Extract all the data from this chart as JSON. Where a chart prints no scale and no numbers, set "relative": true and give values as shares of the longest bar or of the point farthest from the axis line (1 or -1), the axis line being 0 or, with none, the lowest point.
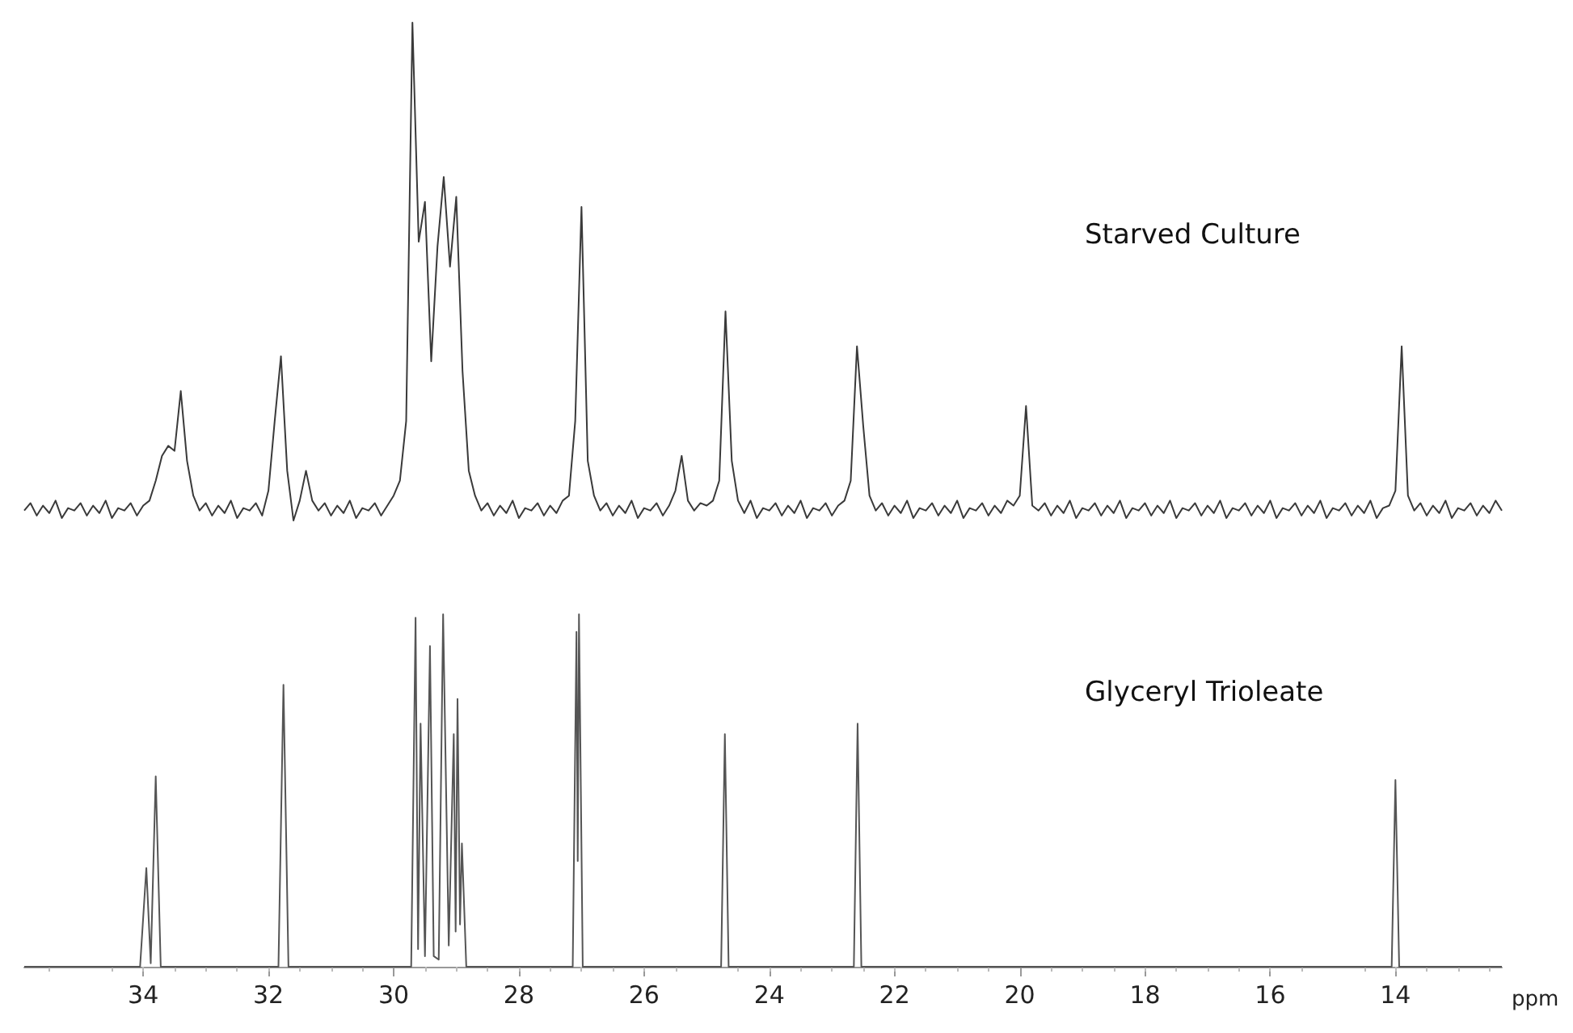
{
  "chart_data": [
    {
      "type": "line",
      "relative": true,
      "tick_labels": false,
      "categories": [
        null,
        null,
        null,
        null,
        null,
        null,
        null,
        null,
        null,
        null,
        null,
        null,
        null,
        null,
        null,
        null,
        null,
        null,
        null,
        null,
        null,
        null,
        null,
        null,
        null,
        null,
        null,
        null,
        null,
        null,
        null,
        null,
        null,
        null,
        null,
        null,
        null,
        null,
        null,
        null,
        null,
        null,
        null,
        null,
        null,
        null,
        null,
        null,
        null,
        null,
        null,
        null,
        null,
        null,
        null,
        null,
        null,
        null,
        null,
        null,
        null,
        null,
        null,
        null,
        null,
        null,
        null,
        null,
        null,
        null,
        null,
        null,
        null,
        null,
        null,
        null,
        null,
        null,
        null,
        null,
        null,
        null,
        null,
        null,
        null,
        null,
        null,
        null,
        null,
        null,
        null,
        null,
        null,
        null,
        null,
        null,
        null,
        null,
        null,
        null,
        null,
        null,
        null,
        null,
        null,
        null,
        null,
        null,
        null,
        null,
        null,
        null,
        null,
        null,
        null,
        null,
        null,
        null,
        null,
        null,
        null,
        null,
        null,
        null,
        null,
        null,
        null,
        null,
        null,
        null,
        null,
        null,
        null,
        null,
        null,
        null,
        null,
        null,
        null,
        null,
        null,
        null,
        null,
        null,
        null,
        null,
        null,
        null,
        null,
        null,
        null,
        null,
        null,
        null,
        null,
        null,
        null,
        null,
        null,
        null,
        null,
        null,
        null,
        null,
        null,
        null,
        null,
        null,
        null,
        null,
        null,
        null,
        null,
        null,
        null,
        null,
        null,
        null,
        null,
        null,
        null,
        null,
        null,
        null,
        null,
        null,
        null,
        null,
        null,
        null,
        null,
        null,
        null,
        null,
        null,
        null,
        null,
        null,
        null,
        null,
        null,
        null,
        null,
        null,
        null,
        null,
        null,
        null,
        null,
        null,
        null,
        null,
        null,
        null,
        null,
        null,
        null,
        null,
        null,
        null,
        null,
        null,
        null,
        null,
        null,
        null,
        null,
        null,
        null,
        null,
        null,
        null,
        null,
        null,
        null,
        null,
        null
      ],
      "series": [
        {
          "name": "Starved Culture",
          "color": "#3a3a3a",
          "values": [
            0.02,
            0.035,
            0.01,
            0.03,
            0.015,
            0.04,
            0.005,
            0.025,
            0.02,
            0.035,
            0.01,
            0.03,
            0.015,
            0.04,
            0.005,
            0.025,
            0.02,
            0.035,
            0.01,
            0.03,
            0.04,
            0.08,
            0.13,
            0.15,
            0.14,
            0.26,
            0.12,
            0.05,
            0.02,
            0.035,
            0.01,
            0.03,
            0.015,
            0.04,
            0.005,
            0.025,
            0.02,
            0.035,
            0.01,
            0.06,
            0.2,
            0.33,
            0.1,
            0.0,
            0.04,
            0.1,
            0.04,
            0.02,
            0.035,
            0.01,
            0.03,
            0.015,
            0.04,
            0.005,
            0.025,
            0.02,
            0.035,
            0.01,
            0.03,
            0.05,
            0.08,
            0.2,
            1.0,
            0.56,
            0.64,
            0.32,
            0.55,
            0.69,
            0.51,
            0.65,
            0.3,
            0.1,
            0.05,
            0.02,
            0.035,
            0.01,
            0.03,
            0.015,
            0.04,
            0.005,
            0.025,
            0.02,
            0.035,
            0.01,
            0.03,
            0.015,
            0.04,
            0.05,
            0.2,
            0.63,
            0.12,
            0.05,
            0.02,
            0.035,
            0.01,
            0.03,
            0.015,
            0.04,
            0.005,
            0.025,
            0.02,
            0.035,
            0.01,
            0.03,
            0.06,
            0.13,
            0.04,
            0.02,
            0.035,
            0.03,
            0.04,
            0.08,
            0.42,
            0.12,
            0.04,
            0.015,
            0.04,
            0.005,
            0.025,
            0.02,
            0.035,
            0.01,
            0.03,
            0.015,
            0.04,
            0.005,
            0.025,
            0.02,
            0.035,
            0.01,
            0.03,
            0.04,
            0.08,
            0.35,
            0.19,
            0.05,
            0.02,
            0.035,
            0.01,
            0.03,
            0.015,
            0.04,
            0.005,
            0.025,
            0.02,
            0.035,
            0.01,
            0.03,
            0.015,
            0.04,
            0.005,
            0.025,
            0.02,
            0.035,
            0.01,
            0.03,
            0.015,
            0.04,
            0.03,
            0.05,
            0.23,
            0.03,
            0.02,
            0.035,
            0.01,
            0.03,
            0.015,
            0.04,
            0.005,
            0.025,
            0.02,
            0.035,
            0.01,
            0.03,
            0.015,
            0.04,
            0.005,
            0.025,
            0.02,
            0.035,
            0.01,
            0.03,
            0.015,
            0.04,
            0.005,
            0.025,
            0.02,
            0.035,
            0.01,
            0.03,
            0.015,
            0.04,
            0.005,
            0.025,
            0.02,
            0.035,
            0.01,
            0.03,
            0.015,
            0.04,
            0.005,
            0.025,
            0.02,
            0.035,
            0.01,
            0.03,
            0.015,
            0.04,
            0.005,
            0.025,
            0.02,
            0.035,
            0.01,
            0.03,
            0.015,
            0.04,
            0.005,
            0.025,
            0.03,
            0.06,
            0.35,
            0.05,
            0.02,
            0.035,
            0.01,
            0.03,
            0.015,
            0.04,
            0.005,
            0.025,
            0.02,
            0.035,
            0.01,
            0.03,
            0.015,
            0.04,
            0.02
          ]
        }
      ]
    },
    {
      "type": "line",
      "relative": true,
      "tick_labels": "x",
      "xlim": [
        35.9,
        12.3
      ],
      "xticks": [
        34,
        32,
        30,
        28,
        26,
        24,
        22,
        20,
        18,
        16,
        14
      ],
      "xlabel": "ppm",
      "x": [
        35.9,
        34.05,
        33.95,
        33.88,
        33.8,
        33.72,
        31.84,
        31.76,
        31.68,
        29.72,
        29.65,
        29.61,
        29.57,
        29.5,
        29.42,
        29.36,
        29.28,
        29.21,
        29.12,
        29.04,
        29.01,
        28.98,
        28.94,
        28.91,
        28.84,
        27.14,
        27.08,
        27.06,
        27.04,
        26.98,
        24.77,
        24.71,
        24.65,
        22.65,
        22.59,
        22.53,
        14.06,
        14.0,
        13.94,
        12.3
      ],
      "series": [
        {
          "name": "Glyceryl Trioleate",
          "color": "#555555",
          "values": [
            0,
            0,
            0.28,
            0.01,
            0.54,
            0,
            0,
            0.8,
            0,
            0,
            0.99,
            0.05,
            0.69,
            0.03,
            0.91,
            0.03,
            0.02,
            1.0,
            0.06,
            0.66,
            0.1,
            0.76,
            0.12,
            0.35,
            0,
            0,
            0.95,
            0.3,
            1.0,
            0,
            0,
            0.66,
            0,
            0,
            0.69,
            0,
            0,
            0.53,
            0,
            0
          ]
        }
      ]
    }
  ]
}
